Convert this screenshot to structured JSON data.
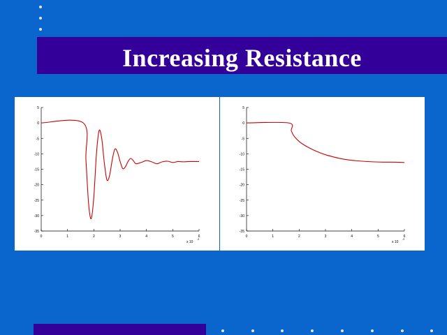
{
  "slide": {
    "title": "Increasing Resistance",
    "colors": {
      "background": "#0a66cc",
      "band": "#330099",
      "curve": "#cc0000"
    }
  },
  "chart_data": [
    {
      "type": "line",
      "title": "",
      "xlabel": "x 10^-3",
      "ylabel": "",
      "xlim": [
        0,
        6
      ],
      "ylim": [
        -35,
        5
      ],
      "xticks": [
        "0",
        "1",
        "2",
        "3",
        "4",
        "5",
        "6"
      ],
      "yticks": [
        "5",
        "0",
        "-5",
        "-10",
        "-15",
        "-20",
        "-25",
        "-30",
        "-35"
      ],
      "x_multiplier": "x 10",
      "x_exponent": "-3",
      "series": [
        {
          "x": [
            0,
            1.6,
            1.7,
            1.8,
            1.9,
            2.0,
            2.1,
            2.2,
            2.3,
            2.4,
            2.5,
            2.6,
            2.7,
            2.8,
            2.9,
            3.0,
            3.1,
            3.2,
            3.3,
            3.4,
            3.5,
            3.6,
            3.8,
            4.0,
            4.2,
            4.4,
            4.6,
            4.8,
            5.0,
            5.2,
            5.4,
            5.6,
            5.8,
            6.0
          ],
          "y": [
            0,
            0,
            -12,
            -26,
            -31,
            -24,
            -10,
            -2.5,
            -5,
            -13,
            -18.5,
            -17,
            -12,
            -8.5,
            -9.5,
            -12.5,
            -14.8,
            -14.2,
            -12.5,
            -11.5,
            -12.2,
            -13.2,
            -12.8,
            -12.2,
            -12.6,
            -13.2,
            -12.6,
            -12.4,
            -12.8,
            -12.5,
            -12.6,
            -12.5,
            -12.5,
            -12.5
          ]
        }
      ]
    },
    {
      "type": "line",
      "title": "",
      "xlabel": "x 10^-3",
      "ylabel": "",
      "xlim": [
        0,
        6
      ],
      "ylim": [
        -35,
        5
      ],
      "xticks": [
        "0",
        "1",
        "2",
        "3",
        "4",
        "5",
        "6"
      ],
      "yticks": [
        "5",
        "0",
        "-5",
        "-10",
        "-15",
        "-20",
        "-25",
        "-30",
        "-35"
      ],
      "x_multiplier": "x 10",
      "x_exponent": "-3",
      "series": [
        {
          "x": [
            0,
            1.6,
            1.7,
            1.8,
            2.0,
            2.2,
            2.5,
            2.8,
            3.0,
            3.3,
            3.6,
            4.0,
            4.4,
            4.8,
            5.2,
            5.6,
            6.0
          ],
          "y": [
            0,
            0,
            -2.5,
            -4.2,
            -6,
            -7.2,
            -8.6,
            -9.7,
            -10.3,
            -11,
            -11.6,
            -12.1,
            -12.4,
            -12.6,
            -12.7,
            -12.7,
            -12.8
          ]
        }
      ]
    }
  ]
}
